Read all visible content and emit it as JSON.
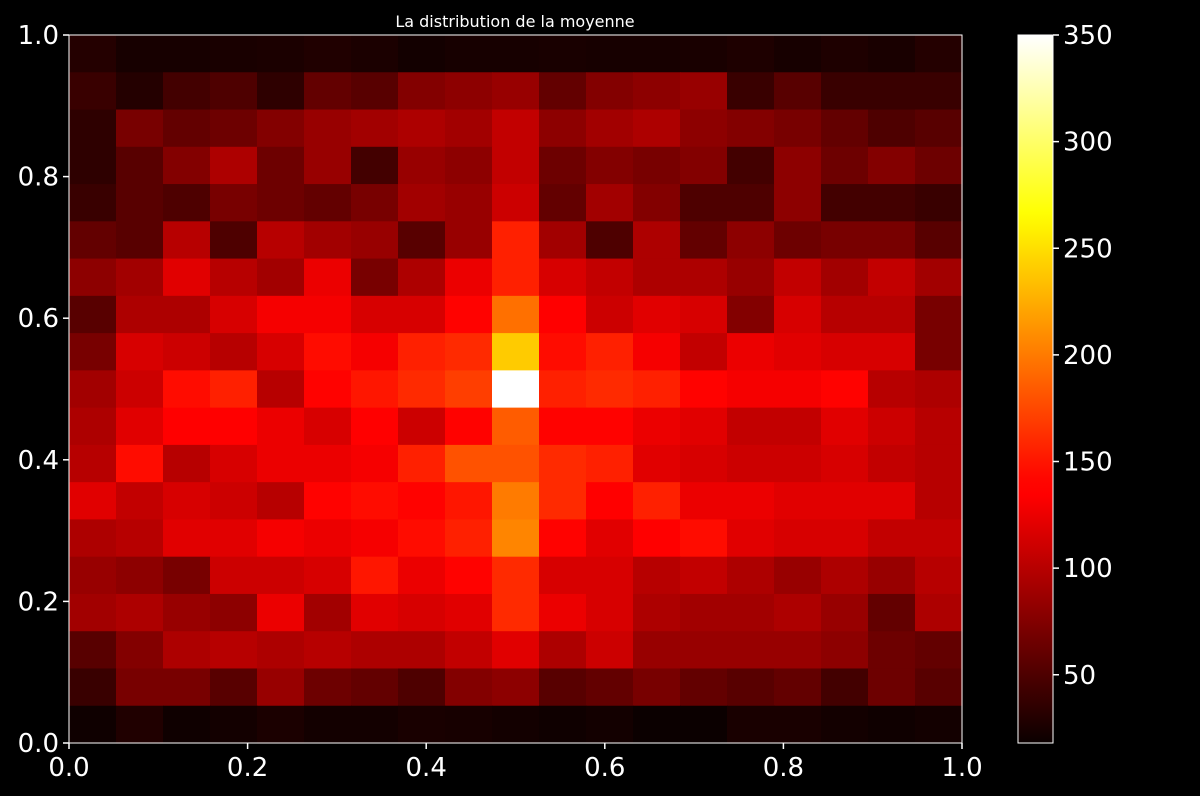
{
  "chart_data": {
    "type": "heatmap",
    "title": "La distribution de la moyenne",
    "xlabel": "",
    "ylabel": "",
    "xlim": [
      0.0,
      1.0
    ],
    "ylim": [
      0.0,
      1.0
    ],
    "x_ticks": [
      0.0,
      0.2,
      0.4,
      0.6,
      0.8,
      1.0
    ],
    "y_ticks": [
      0.0,
      0.2,
      0.4,
      0.6,
      0.8,
      1.0
    ],
    "x_tick_labels": [
      "0.0",
      "0.2",
      "0.4",
      "0.6",
      "0.8",
      "1.0"
    ],
    "y_tick_labels": [
      "0.0",
      "0.2",
      "0.4",
      "0.6",
      "0.8",
      "1.0"
    ],
    "n_bins": [
      19,
      19
    ],
    "colormap": "hot",
    "colorbar": {
      "range": [
        18,
        350
      ],
      "ticks": [
        50,
        100,
        150,
        200,
        250,
        300,
        350
      ],
      "tick_labels": [
        "50",
        "100",
        "150",
        "200",
        "250",
        "300",
        "350"
      ]
    },
    "grid": false,
    "values_rows_top_to_bottom": [
      [
        30,
        24,
        24,
        25,
        26,
        28,
        26,
        22,
        24,
        24,
        25,
        24,
        24,
        25,
        27,
        24,
        27,
        25,
        30
      ],
      [
        40,
        30,
        45,
        50,
        35,
        60,
        55,
        75,
        80,
        85,
        60,
        75,
        80,
        85,
        40,
        55,
        40,
        40,
        40
      ],
      [
        35,
        70,
        60,
        65,
        75,
        85,
        90,
        95,
        90,
        105,
        80,
        90,
        95,
        80,
        75,
        70,
        60,
        50,
        55
      ],
      [
        35,
        55,
        75,
        95,
        65,
        85,
        45,
        85,
        80,
        105,
        65,
        75,
        70,
        75,
        45,
        80,
        65,
        75,
        65
      ],
      [
        40,
        55,
        50,
        70,
        65,
        60,
        70,
        90,
        85,
        110,
        60,
        90,
        75,
        50,
        50,
        80,
        45,
        45,
        40
      ],
      [
        60,
        55,
        100,
        50,
        100,
        90,
        85,
        55,
        85,
        155,
        90,
        50,
        95,
        60,
        80,
        65,
        70,
        70,
        55
      ],
      [
        80,
        90,
        120,
        100,
        90,
        125,
        70,
        95,
        125,
        155,
        115,
        105,
        95,
        95,
        85,
        105,
        90,
        105,
        90
      ],
      [
        55,
        95,
        95,
        115,
        130,
        130,
        115,
        115,
        140,
        195,
        135,
        110,
        120,
        115,
        75,
        115,
        100,
        100,
        70
      ],
      [
        70,
        115,
        110,
        100,
        115,
        145,
        130,
        155,
        160,
        240,
        145,
        155,
        130,
        105,
        125,
        120,
        115,
        115,
        70
      ],
      [
        90,
        110,
        145,
        155,
        100,
        140,
        150,
        160,
        170,
        350,
        155,
        160,
        155,
        140,
        130,
        130,
        140,
        100,
        95
      ],
      [
        95,
        120,
        135,
        135,
        125,
        115,
        135,
        110,
        140,
        185,
        140,
        140,
        125,
        120,
        105,
        105,
        120,
        110,
        100
      ],
      [
        100,
        145,
        100,
        115,
        125,
        125,
        130,
        155,
        180,
        180,
        160,
        155,
        120,
        115,
        110,
        110,
        115,
        105,
        100
      ],
      [
        120,
        105,
        115,
        110,
        100,
        140,
        145,
        140,
        150,
        200,
        160,
        135,
        155,
        125,
        125,
        120,
        120,
        120,
        100
      ],
      [
        95,
        100,
        120,
        120,
        130,
        125,
        130,
        145,
        155,
        205,
        140,
        120,
        135,
        145,
        120,
        115,
        115,
        105,
        105
      ],
      [
        85,
        80,
        70,
        110,
        110,
        115,
        150,
        125,
        140,
        160,
        115,
        115,
        100,
        105,
        95,
        85,
        95,
        85,
        100
      ],
      [
        90,
        95,
        85,
        80,
        125,
        90,
        120,
        115,
        120,
        160,
        125,
        115,
        95,
        90,
        90,
        95,
        85,
        60,
        95
      ],
      [
        55,
        75,
        95,
        100,
        95,
        100,
        95,
        95,
        105,
        120,
        95,
        110,
        85,
        85,
        85,
        85,
        80,
        65,
        60
      ],
      [
        40,
        70,
        70,
        55,
        85,
        65,
        60,
        50,
        75,
        80,
        55,
        60,
        70,
        60,
        55,
        60,
        45,
        65,
        55
      ],
      [
        20,
        28,
        20,
        22,
        26,
        22,
        22,
        25,
        24,
        22,
        20,
        22,
        18,
        18,
        25,
        25,
        22,
        20,
        22
      ]
    ]
  }
}
